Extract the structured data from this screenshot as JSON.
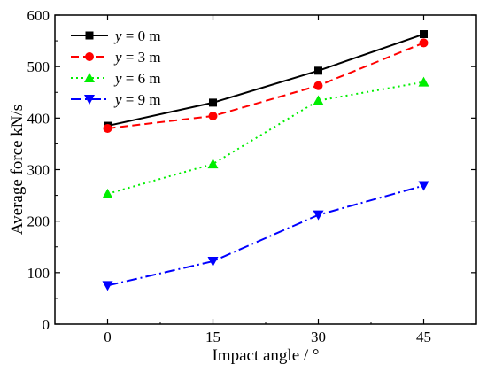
{
  "chart_data": {
    "type": "line",
    "title": "",
    "xlabel": "Impact angle / °",
    "ylabel": "Average force kN/s",
    "x": [
      0,
      15,
      30,
      45
    ],
    "xticks": [
      "0",
      "15",
      "30",
      "45"
    ],
    "xlim": [
      -7.5,
      52.5
    ],
    "ylim": [
      0,
      600
    ],
    "yticks": [
      "0",
      "100",
      "200",
      "300",
      "400",
      "500",
      "600"
    ],
    "grid": false,
    "legend_position": "top-left",
    "series": [
      {
        "name": "y = 0 m",
        "var": "y",
        "rest": " = 0 m",
        "values": [
          385,
          430,
          492,
          563
        ],
        "color": "#000000",
        "dash": "",
        "marker": "square"
      },
      {
        "name": "y = 3 m",
        "var": "y",
        "rest": " = 3 m",
        "values": [
          380,
          404,
          463,
          546
        ],
        "color": "#ff0000",
        "dash": "9,5",
        "marker": "circle"
      },
      {
        "name": "y = 6 m",
        "var": "y",
        "rest": " = 6 m",
        "values": [
          253,
          311,
          434,
          470
        ],
        "color": "#00ee00",
        "dash": "2,4",
        "marker": "triangle-up"
      },
      {
        "name": "y = 9 m",
        "var": "y",
        "rest": " = 9 m",
        "values": [
          75,
          122,
          212,
          269
        ],
        "color": "#0000ff",
        "dash": "12,4,2,4",
        "marker": "triangle-down"
      }
    ]
  }
}
